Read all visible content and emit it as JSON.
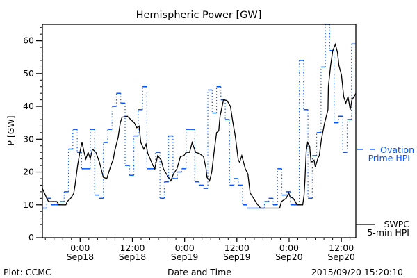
{
  "chart_data": {
    "type": "line",
    "title": "Hemispheric Power [GW]",
    "xlabel": "Date and Time",
    "ylabel": "P [GW]",
    "x_units": "hours since 2015/09/17 15:20",
    "xlim": [
      0,
      72
    ],
    "ylim": [
      0,
      65
    ],
    "yticks": [
      0,
      10,
      20,
      30,
      40,
      50,
      60
    ],
    "xticks": [
      {
        "t": 8.67,
        "line1": "0:00",
        "line2": "Sep18"
      },
      {
        "t": 20.67,
        "line1": "12:00",
        "line2": "Sep18"
      },
      {
        "t": 32.67,
        "line1": "0:00",
        "line2": "Sep19"
      },
      {
        "t": 44.67,
        "line1": "12:00",
        "line2": "Sep19"
      },
      {
        "t": 56.67,
        "line1": "0:00",
        "line2": "Sep20"
      },
      {
        "t": 68.67,
        "line1": "12:00",
        "line2": "Sep20"
      }
    ],
    "series": [
      {
        "name": "SWPC 5-min HPI",
        "legend_line1": "SWPC",
        "legend_line2": "5-min HPI",
        "color": "#000000",
        "style": "solid",
        "t": [
          0,
          1.0,
          1.4,
          3.3,
          3.8,
          5.4,
          5.7,
          6.5,
          7.2,
          7.5,
          8.1,
          8.6,
          9.1,
          9.6,
          10.0,
          10.5,
          11.0,
          11.5,
          12.3,
          13.1,
          14.0,
          14.8,
          15.5,
          16.3,
          16.6,
          17.4,
          17.9,
          18.3,
          19.5,
          20.3,
          21.1,
          21.7,
          22.2,
          22.6,
          23.3,
          23.8,
          24.2,
          25.4,
          25.8,
          26.5,
          27.3,
          27.8,
          28.5,
          29.5,
          30.1,
          30.9,
          31.7,
          32.5,
          33.0,
          33.8,
          34.4,
          35.2,
          36.0,
          37.0,
          37.6,
          37.8,
          38.4,
          38.9,
          39.4,
          40.0,
          40.5,
          40.8,
          41.6,
          42.4,
          43.2,
          43.7,
          44.3,
          45.0,
          45.3,
          45.8,
          46.6,
          47.2,
          47.7,
          48.5,
          49.3,
          50.1,
          54.5,
          54.9,
          56.0,
          56.6,
          56.9,
          57.6,
          58.1,
          58.5,
          59.8,
          60.1,
          60.3,
          60.6,
          60.9,
          61.4,
          61.7,
          62.4,
          62.7,
          63.3,
          63.6,
          64.1,
          64.8,
          65.6,
          65.7,
          66.2,
          66.7,
          67.3,
          67.8,
          68.1,
          68.7,
          69.2,
          69.7,
          70.2,
          70.7,
          71.1,
          71.6,
          72
        ],
        "values": [
          15,
          12,
          11,
          11,
          10,
          10,
          11,
          12,
          13.5,
          16,
          22,
          26,
          29,
          26,
          24,
          26,
          24,
          27,
          26,
          23,
          18.4,
          18,
          21,
          24,
          26.4,
          30.6,
          35,
          36.7,
          37,
          36,
          35,
          33.5,
          34,
          29,
          27,
          28.5,
          25.7,
          22,
          21,
          25,
          23.6,
          21,
          19.4,
          17.3,
          19.4,
          21,
          24.7,
          25,
          26,
          26,
          29,
          26,
          25.7,
          24.7,
          21,
          18.4,
          17.3,
          20,
          25.7,
          32,
          32.5,
          37,
          42,
          41.8,
          40,
          35.6,
          31,
          23.6,
          23,
          25,
          21,
          19.4,
          13.7,
          12,
          10.3,
          9,
          9,
          11,
          12,
          13.7,
          12.4,
          12,
          11,
          10,
          10,
          13,
          17.3,
          26.4,
          29,
          27.8,
          23,
          23.6,
          21.5,
          24.3,
          25,
          30,
          34.8,
          39,
          46,
          52.5,
          57,
          58.9,
          56.3,
          52.5,
          49.6,
          43,
          41,
          43,
          39,
          42,
          43,
          44
        ]
      },
      {
        "name": "Ovation Prime HPI",
        "legend_line1": "Ovation",
        "legend_line2": "Prime HPI",
        "color": "#0055ff",
        "style": "hourly steps, dotted risers",
        "step_hours": 1,
        "values": [
          9,
          12,
          10,
          10,
          11,
          14,
          27,
          33,
          26,
          21,
          21,
          33,
          13,
          12,
          29,
          33,
          40,
          44,
          41,
          22,
          19,
          31,
          39,
          46,
          21,
          21,
          26,
          12,
          17,
          31,
          18,
          20,
          21,
          33,
          33,
          17,
          16,
          15,
          45,
          38,
          46,
          42,
          36,
          16,
          18,
          16,
          10,
          9,
          9,
          9,
          9,
          11,
          12,
          10,
          21,
          13,
          14,
          10,
          10,
          54,
          39,
          12,
          25,
          32,
          52,
          65,
          57,
          35,
          37,
          26,
          36,
          59
        ]
      }
    ],
    "footer": {
      "left": "Plot: CCMC",
      "right": "2015/09/20 15:20:10"
    }
  }
}
